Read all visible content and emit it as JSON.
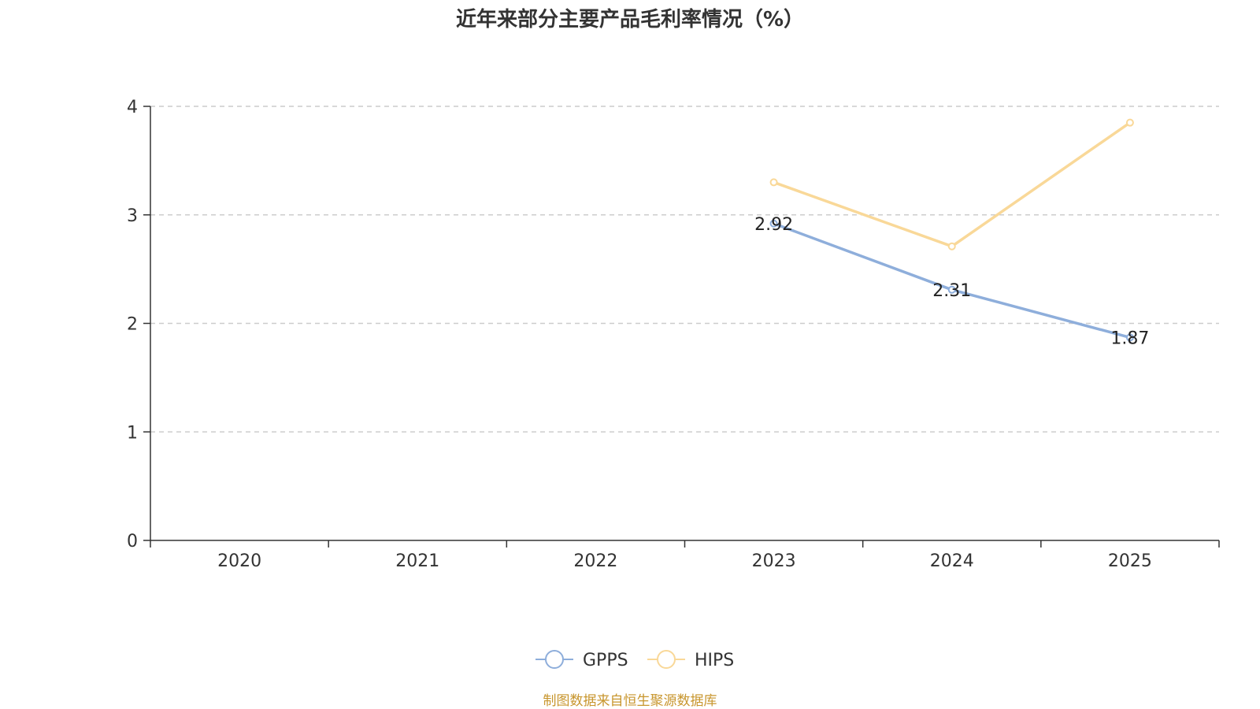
{
  "chart_data": {
    "type": "line",
    "title": "近年来部分主要产品毛利率情况（%）",
    "xlabel": "",
    "ylabel": "",
    "categories": [
      "2020",
      "2021",
      "2022",
      "2023",
      "2024",
      "2025"
    ],
    "ylim": [
      0,
      4
    ],
    "yticks": [
      "0",
      "1",
      "2",
      "3",
      "4"
    ],
    "grid": "horizontal-dashed",
    "legend_position": "bottom-center",
    "series": [
      {
        "name": "GPPS",
        "color": "#8eaedb",
        "values": [
          null,
          null,
          null,
          2.92,
          2.31,
          1.87
        ],
        "labels": [
          "",
          "",
          "",
          "2.92",
          "2.31",
          "1.87"
        ]
      },
      {
        "name": "HIPS",
        "color": "#f9d898",
        "values": [
          null,
          null,
          null,
          3.3,
          2.71,
          3.85
        ],
        "labels": [
          "",
          "",
          "",
          "",
          "",
          ""
        ]
      }
    ]
  },
  "source_note": "制图数据来自恒生聚源数据库"
}
